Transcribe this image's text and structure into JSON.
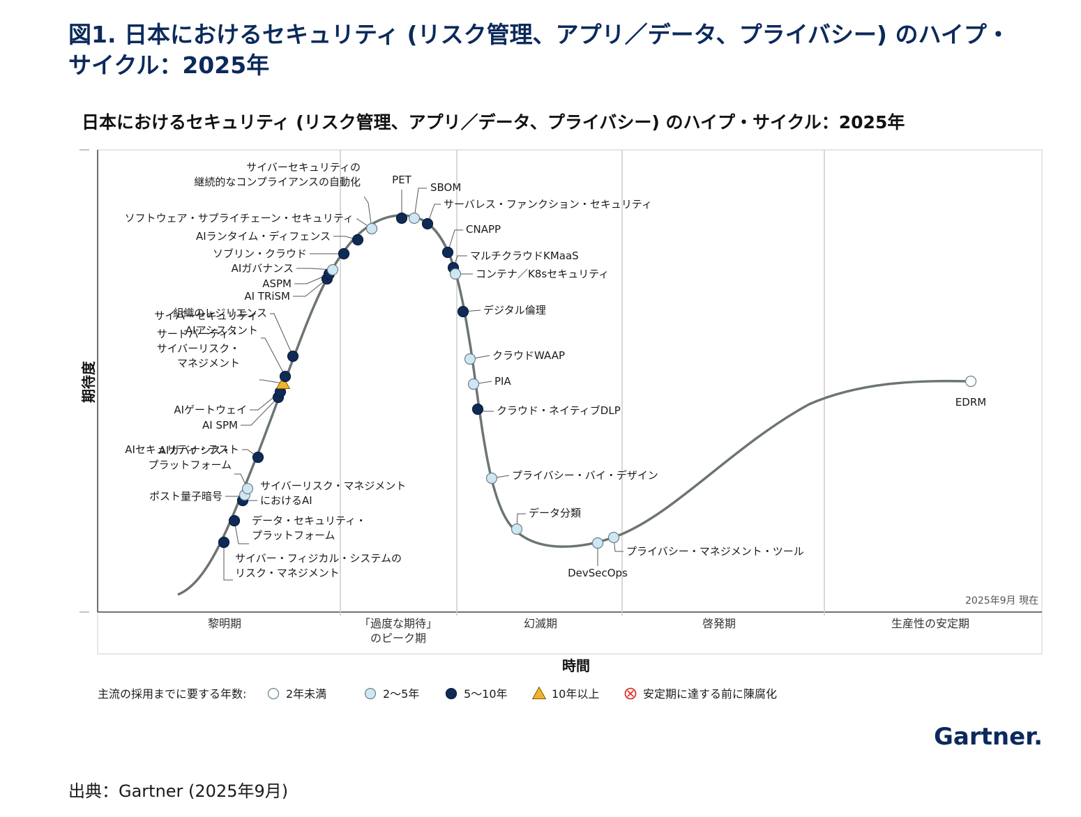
{
  "figure_title": "図1. 日本におけるセキュリティ (リスク管理、アプリ／データ、プライバシー) のハイプ・サイクル：2025年",
  "source": "出典：Gartner (2025年9月)",
  "brand": "Gartner.",
  "colors": {
    "title_navy": "#0b2a5b",
    "curve_gray": "#6c7571",
    "dark_navy_dot": "#0f2a55",
    "light_blue_dot": "#cfe6f3",
    "white_dot": "#ffffff",
    "triangle_yellow": "#f0b429",
    "obsolete_red": "#d9342b",
    "grid_gray": "#cccccc"
  },
  "chart_data": {
    "type": "hype-cycle",
    "title": "日本におけるセキュリティ (リスク管理、アプリ／データ、プライバシー) のハイプ・サイクル：2025年",
    "ylabel": "期待度",
    "xlabel": "時間",
    "as_of": "2025年9月 現在",
    "phases": [
      {
        "name": "黎明期"
      },
      {
        "name": "「過度な期待」\nのピーク期"
      },
      {
        "name": "幻滅期"
      },
      {
        "name": "啓発期"
      },
      {
        "name": "生産性の安定期"
      }
    ],
    "legend_title": "主流の採用までに要する年数:",
    "legend": [
      {
        "key": "lt2",
        "label": "2年未満",
        "symbol": "white-circle"
      },
      {
        "key": "2to5",
        "label": "2〜5年",
        "symbol": "light-blue-circle"
      },
      {
        "key": "5to10",
        "label": "5〜10年",
        "symbol": "dark-circle"
      },
      {
        "key": "gt10",
        "label": "10年以上",
        "symbol": "yellow-triangle"
      },
      {
        "key": "obsolete",
        "label": "安定期に達する前に陳腐化",
        "symbol": "red-x-circle"
      }
    ],
    "technologies": [
      {
        "name": "サイバー・フィジカル・システムの\nリスク・マネジメント",
        "category": "5to10"
      },
      {
        "name": "データ・セキュリティ・\nプラットフォーム",
        "category": "5to10"
      },
      {
        "name": "サイバーリスク・マネジメント\nにおけるAI",
        "category": "5to10"
      },
      {
        "name": "ポスト量子暗号",
        "category": "2to5"
      },
      {
        "name": "AIガバナンス・\nプラットフォーム",
        "category": "2to5"
      },
      {
        "name": "AIセキュリティ・テスト",
        "category": "5to10"
      },
      {
        "name": "AI SPM",
        "category": "5to10"
      },
      {
        "name": "AIゲートウェイ",
        "category": "5to10"
      },
      {
        "name": "サードパーティ・\nサイバーリスク・\nマネジメント",
        "category": "gt10"
      },
      {
        "name": "サイバーセキュリティ\nAIアシスタント",
        "category": "5to10"
      },
      {
        "name": "組織のレジリエンス",
        "category": "5to10"
      },
      {
        "name": "AI TRiSM",
        "category": "5to10"
      },
      {
        "name": "ASPM",
        "category": "5to10"
      },
      {
        "name": "AIガバナンス",
        "category": "2to5"
      },
      {
        "name": "ソブリン・クラウド",
        "category": "5to10"
      },
      {
        "name": "AIランタイム・ディフェンス",
        "category": "5to10"
      },
      {
        "name": "ソフトウェア・サプライチェーン・セキュリティ",
        "category": "2to5"
      },
      {
        "name": "サイバーセキュリティの\n継続的なコンプライアンスの自動化",
        "category": "2to5"
      },
      {
        "name": "PET",
        "category": "5to10"
      },
      {
        "name": "SBOM",
        "category": "2to5"
      },
      {
        "name": "サーバレス・ファンクション・セキュリティ",
        "category": "5to10"
      },
      {
        "name": "CNAPP",
        "category": "5to10"
      },
      {
        "name": "マルチクラウドKMaaS",
        "category": "5to10"
      },
      {
        "name": "コンテナ／K8sセキュリティ",
        "category": "2to5"
      },
      {
        "name": "デジタル倫理",
        "category": "5to10"
      },
      {
        "name": "クラウドWAAP",
        "category": "2to5"
      },
      {
        "name": "PIA",
        "category": "2to5"
      },
      {
        "name": "クラウド・ネイティブDLP",
        "category": "5to10"
      },
      {
        "name": "プライバシー・バイ・デザイン",
        "category": "2to5"
      },
      {
        "name": "データ分類",
        "category": "2to5"
      },
      {
        "name": "DevSecOps",
        "category": "2to5"
      },
      {
        "name": "プライバシー・マネジメント・ツール",
        "category": "2to5"
      },
      {
        "name": "EDRM",
        "category": "lt2"
      }
    ]
  }
}
